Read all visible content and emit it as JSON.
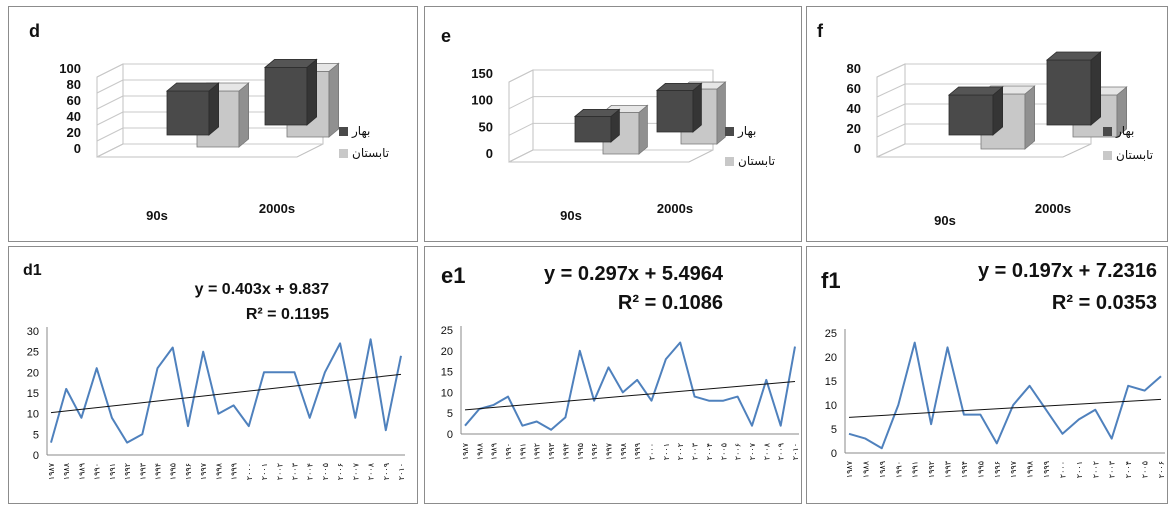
{
  "legend": {
    "spring": "بهار",
    "summer": "تابستان"
  },
  "colors": {
    "spring": "#4a4a4a",
    "summer": "#c8c8c8",
    "line": "#4f81bd",
    "trend": "#111111"
  },
  "bar_panels": [
    {
      "label": "d",
      "categories": [
        "90s",
        "2000s"
      ],
      "yticks": [
        "100",
        "80",
        "60",
        "40",
        "20",
        "0"
      ]
    },
    {
      "label": "e",
      "categories": [
        "90s",
        "2000s"
      ],
      "yticks": [
        "150",
        "100",
        "50",
        "0"
      ]
    },
    {
      "label": "f",
      "categories": [
        "90s",
        "2000s"
      ],
      "yticks": [
        "80",
        "60",
        "40",
        "20",
        "0"
      ]
    }
  ],
  "line_panels": [
    {
      "label": "d1",
      "equation": "y = 0.403x + 9.837",
      "r2": "R² = 0.1195",
      "yticks": [
        "30",
        "25",
        "20",
        "15",
        "10",
        "5",
        "0"
      ]
    },
    {
      "label": "e1",
      "equation": "y = 0.297x + 5.4964",
      "r2": "R² = 0.1086",
      "yticks": [
        "25",
        "20",
        "15",
        "10",
        "5",
        "0"
      ]
    },
    {
      "label": "f1",
      "equation": "y = 0.197x + 7.2316",
      "r2": "R² = 0.0353",
      "yticks": [
        "25",
        "20",
        "15",
        "10",
        "5",
        "0"
      ]
    }
  ],
  "chart_data": [
    {
      "type": "bar",
      "title": "d",
      "categories": [
        "90s",
        "2000s"
      ],
      "ylim": [
        0,
        100
      ],
      "series": [
        {
          "name": "بهار",
          "values": [
            55,
            72
          ]
        },
        {
          "name": "تابستان",
          "values": [
            70,
            82
          ]
        }
      ]
    },
    {
      "type": "bar",
      "title": "e",
      "categories": [
        "90s",
        "2000s"
      ],
      "ylim": [
        0,
        150
      ],
      "series": [
        {
          "name": "بهار",
          "values": [
            48,
            78
          ]
        },
        {
          "name": "تابستان",
          "values": [
            78,
            103
          ]
        }
      ]
    },
    {
      "type": "bar",
      "title": "f",
      "categories": [
        "90s",
        "2000s"
      ],
      "ylim": [
        0,
        80
      ],
      "series": [
        {
          "name": "بهار",
          "values": [
            40,
            65
          ]
        },
        {
          "name": "تابستان",
          "values": [
            55,
            42
          ]
        }
      ]
    },
    {
      "type": "line",
      "title": "d1",
      "ylim": [
        0,
        30
      ],
      "x": [
        "۱۹۸۷",
        "۱۹۸۸",
        "۱۹۸۹",
        "۱۹۹۰",
        "۱۹۹۱",
        "۱۹۹۲",
        "۱۹۹۳",
        "۱۹۹۴",
        "۱۹۹۵",
        "۱۹۹۶",
        "۱۹۹۷",
        "۱۹۹۸",
        "۱۹۹۹",
        "۲۰۰۰",
        "۲۰۰۱",
        "۲۰۰۲",
        "۲۰۰۳",
        "۲۰۰۴",
        "۲۰۰۵",
        "۲۰۰۶",
        "۲۰۰۷",
        "۲۰۰۸",
        "۲۰۰۹",
        "۲۰۱۰"
      ],
      "values": [
        3,
        16,
        9,
        21,
        9,
        3,
        5,
        21,
        26,
        7,
        25,
        10,
        12,
        7,
        20,
        20,
        20,
        9,
        20,
        27,
        9,
        28,
        6,
        24
      ],
      "trend": {
        "slope": 0.403,
        "intercept": 9.837
      }
    },
    {
      "type": "line",
      "title": "e1",
      "ylim": [
        0,
        25
      ],
      "x": [
        "۱۹۸۷",
        "۱۹۸۸",
        "۱۹۸۹",
        "۱۹۹۰",
        "۱۹۹۱",
        "۱۹۹۲",
        "۱۹۹۳",
        "۱۹۹۴",
        "۱۹۹۵",
        "۱۹۹۶",
        "۱۹۹۷",
        "۱۹۹۸",
        "۱۹۹۹",
        "۲۰۰۰",
        "۲۰۰۱",
        "۲۰۰۲",
        "۲۰۰۳",
        "۲۰۰۴",
        "۲۰۰۵",
        "۲۰۰۶",
        "۲۰۰۷",
        "۲۰۰۸",
        "۲۰۰۹",
        "۲۰۱۰"
      ],
      "values": [
        2,
        6,
        7,
        9,
        2,
        3,
        1,
        4,
        20,
        8,
        16,
        10,
        13,
        8,
        18,
        22,
        9,
        8,
        8,
        9,
        2,
        13,
        2,
        21
      ],
      "trend": {
        "slope": 0.297,
        "intercept": 5.4964
      }
    },
    {
      "type": "line",
      "title": "f1",
      "ylim": [
        0,
        25
      ],
      "x": [
        "۱۹۸۷",
        "۱۹۸۸",
        "۱۹۸۹",
        "۱۹۹۰",
        "۱۹۹۱",
        "۱۹۹۲",
        "۱۹۹۳",
        "۱۹۹۴",
        "۱۹۹۵",
        "۱۹۹۶",
        "۱۹۹۷",
        "۱۹۹۸",
        "۱۹۹۹",
        "۲۰۰۰",
        "۲۰۰۱",
        "۲۰۰۲",
        "۲۰۰۳",
        "۲۰۰۴",
        "۲۰۰۵",
        "۲۰۰۶"
      ],
      "values": [
        4,
        3,
        1,
        10,
        23,
        6,
        22,
        8,
        8,
        2,
        10,
        14,
        9,
        4,
        7,
        9,
        3,
        14,
        13,
        16
      ],
      "trend": {
        "slope": 0.197,
        "intercept": 7.2316
      }
    }
  ]
}
